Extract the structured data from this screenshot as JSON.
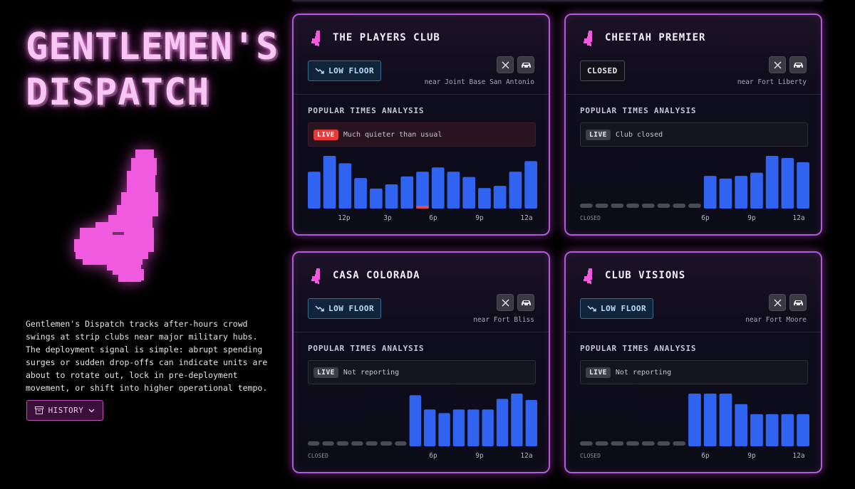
{
  "brand": {
    "title_line1": "GENTLEMEN'S",
    "title_line2": "DISPATCH",
    "description": "Gentlemen's Dispatch tracks after-hours crowd swings at strip clubs near major military hubs. The deployment signal is simple: abrupt spending surges or sudden drop-offs can indicate units are about to rotate out, lock in pre-deployment movement, or shift into higher operational tempo.",
    "history_label": "HISTORY"
  },
  "section_title": "POPULAR TIMES ANALYSIS",
  "clubs": [
    {
      "name": "THE PLAYERS CLUB",
      "status": "LOW FLOOR",
      "status_kind": "low",
      "near": "near Joint Base San Antonio",
      "live_tag": "LIVE",
      "live_kind": "red",
      "live_text": "Much quieter than usual",
      "closed_label": "",
      "ticks": [
        "12p",
        "3p",
        "6p",
        "9p",
        "12a"
      ],
      "bars": [
        0.7,
        1.0,
        0.86,
        0.58,
        0.38,
        0.46,
        0.61,
        0.7,
        0.78,
        0.7,
        0.6,
        0.39,
        0.43,
        0.7,
        0.9
      ],
      "current_index": 7
    },
    {
      "name": "CHEETAH PREMIER",
      "status": "CLOSED",
      "status_kind": "closed",
      "near": "near Fort Liberty",
      "live_tag": "LIVE",
      "live_kind": "gray",
      "live_text": "Club closed",
      "closed_label": "CLOSED",
      "ticks": [
        "6p",
        "9p",
        "12a"
      ],
      "bars": [
        0,
        0,
        0,
        0,
        0,
        0,
        0,
        0,
        0.62,
        0.57,
        0.62,
        0.68,
        1.0,
        0.96,
        0.88
      ],
      "current_index": -1
    },
    {
      "name": "CASA COLORADA",
      "status": "LOW FLOOR",
      "status_kind": "low",
      "near": "near Fort Bliss",
      "live_tag": "LIVE",
      "live_kind": "gray",
      "live_text": "Not reporting",
      "closed_label": "CLOSED",
      "ticks": [
        "6p",
        "9p",
        "12a"
      ],
      "bars": [
        0,
        0,
        0,
        0,
        0,
        0,
        0,
        0.97,
        0.7,
        0.63,
        0.7,
        0.7,
        0.7,
        0.9,
        1.0,
        0.88
      ],
      "current_index": -1
    },
    {
      "name": "CLUB VISIONS",
      "status": "LOW FLOOR",
      "status_kind": "low",
      "near": "near Fort Moore",
      "live_tag": "LIVE",
      "live_kind": "gray",
      "live_text": "Not reporting",
      "closed_label": "CLOSED",
      "ticks": [
        "6p",
        "9p",
        "12a"
      ],
      "bars": [
        0,
        0,
        0,
        0,
        0,
        0,
        0,
        1.0,
        1.0,
        1.0,
        0.8,
        0.61,
        0.61,
        0.61,
        0.61
      ],
      "current_index": -1
    }
  ],
  "colors": {
    "bar": "#2f63f0",
    "closed_bar": "#4a4a56",
    "current_marker": "#e04b62",
    "accent": "#f07ae6"
  }
}
